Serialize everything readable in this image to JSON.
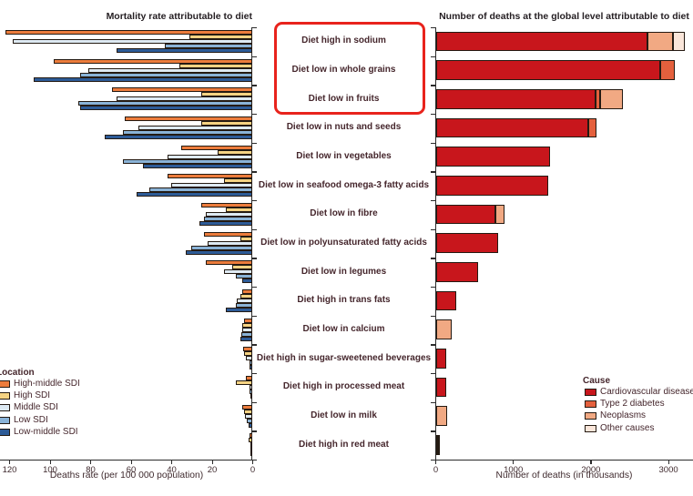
{
  "figure": {
    "text_color": "#3f2a2e",
    "title_color": "#241e22",
    "axis_color": "#2b2b2b",
    "bar_outline_color": "#241a12",
    "highlight_color": "#e8231c"
  },
  "risk_factors": [
    "Diet high in sodium",
    "Diet low in whole grains",
    "Diet low in fruits",
    "Diet low in nuts and seeds",
    "Diet low in vegetables",
    "Diet low in seafood omega-3 fatty acids",
    "Diet low in fibre",
    "Diet low in polyunsaturated fatty acids",
    "Diet low in legumes",
    "Diet high in trans fats",
    "Diet low in calcium",
    "Diet high in sugar-sweetened beverages",
    "Diet high in processed meat",
    "Diet low in milk",
    "Diet high in red meat"
  ],
  "highlighted_risk_factors": [
    "Diet high in sodium",
    "Diet low in whole grains",
    "Diet low in fruits"
  ],
  "chart_data": [
    {
      "type": "bar",
      "orientation": "horizontal-right-to-left",
      "title": "Mortality rate attributable to diet",
      "xlabel": "Deaths rate (per 100 000 population)",
      "axis": {
        "min": 0,
        "max": 120,
        "ticks": [
          120,
          100,
          80,
          60,
          40,
          20,
          0
        ],
        "direction": "reversed"
      },
      "grid": false,
      "legend_title": "Location",
      "legend_position": "bottom-left",
      "categories": [
        "Diet high in sodium",
        "Diet low in whole grains",
        "Diet low in fruits",
        "Diet low in nuts and seeds",
        "Diet low in vegetables",
        "Diet low in seafood omega-3 fatty acids",
        "Diet low in fibre",
        "Diet low in polyunsaturated fatty acids",
        "Diet low in legumes",
        "Diet high in trans fats",
        "Diet low in calcium",
        "Diet high in sugar-sweetened beverages",
        "Diet high in processed meat",
        "Diet low in milk",
        "Diet high in red meat"
      ],
      "series": [
        {
          "name": "High-middle SDI",
          "color": "#ec7c3c",
          "values": [
            122,
            98,
            69,
            63,
            35,
            42,
            25,
            24,
            23,
            5,
            4.2,
            4.5,
            3,
            4.8,
            1.2
          ]
        },
        {
          "name": "High SDI",
          "color": "#f5d383",
          "values": [
            31,
            36,
            25,
            25,
            17,
            14,
            13,
            6,
            10,
            5.7,
            4.8,
            4,
            8,
            4.2,
            1.8
          ]
        },
        {
          "name": "Middle SDI",
          "color": "#deeaf3",
          "values": [
            118,
            81,
            67,
            56,
            42,
            40,
            23,
            22,
            14,
            7.5,
            4.8,
            3.3,
            1.5,
            3.4,
            0.6
          ]
        },
        {
          "name": "Low SDI",
          "color": "#8ab3d7",
          "values": [
            43,
            85,
            86,
            64,
            64,
            51,
            24,
            30,
            8,
            8.3,
            5.2,
            1.2,
            1.2,
            2.5,
            0.4
          ]
        },
        {
          "name": "Low-middle SDI",
          "color": "#2d5b97",
          "values": [
            67,
            108,
            85,
            73,
            54,
            57,
            26,
            33,
            5,
            12.9,
            5.7,
            1.5,
            1,
            1.9,
            0.4
          ]
        }
      ]
    },
    {
      "type": "bar",
      "subtype": "stacked",
      "orientation": "horizontal",
      "title": "Number of deaths at the global level attributable to diet",
      "xlabel": "Number of deaths (in thousands)",
      "axis": {
        "min": 0,
        "max": 3300,
        "ticks": [
          0,
          1000,
          2000,
          3000
        ]
      },
      "grid": false,
      "legend_title": "Cause",
      "legend_position": "bottom-right",
      "categories": [
        "Diet high in sodium",
        "Diet low in whole grains",
        "Diet low in fruits",
        "Diet low in nuts and seeds",
        "Diet low in vegetables",
        "Diet low in seafood omega-3 fatty acids",
        "Diet low in fibre",
        "Diet low in polyunsaturated fatty acids",
        "Diet low in legumes",
        "Diet high in trans fats",
        "Diet low in calcium",
        "Diet high in sugar-sweetened beverages",
        "Diet high in processed meat",
        "Diet low in milk",
        "Diet high in red meat"
      ],
      "series": [
        {
          "name": "Cardiovascular diseases",
          "color": "#c8161c",
          "values": [
            2720,
            2880,
            2050,
            1950,
            1460,
            1440,
            760,
            790,
            530,
            255,
            0,
            130,
            130,
            0,
            8
          ]
        },
        {
          "name": "Type 2 diabetes",
          "color": "#e4603d",
          "values": [
            0,
            185,
            55,
            115,
            0,
            0,
            0,
            0,
            0,
            0,
            0,
            0,
            0,
            0,
            0
          ]
        },
        {
          "name": "Neoplasms",
          "color": "#f1a983",
          "values": [
            325,
            0,
            300,
            0,
            0,
            0,
            120,
            0,
            0,
            0,
            190,
            0,
            0,
            140,
            20
          ]
        },
        {
          "name": "Other causes",
          "color": "#fae6da",
          "values": [
            150,
            0,
            0,
            0,
            0,
            0,
            0,
            0,
            0,
            0,
            0,
            0,
            0,
            0,
            0
          ]
        }
      ]
    }
  ]
}
